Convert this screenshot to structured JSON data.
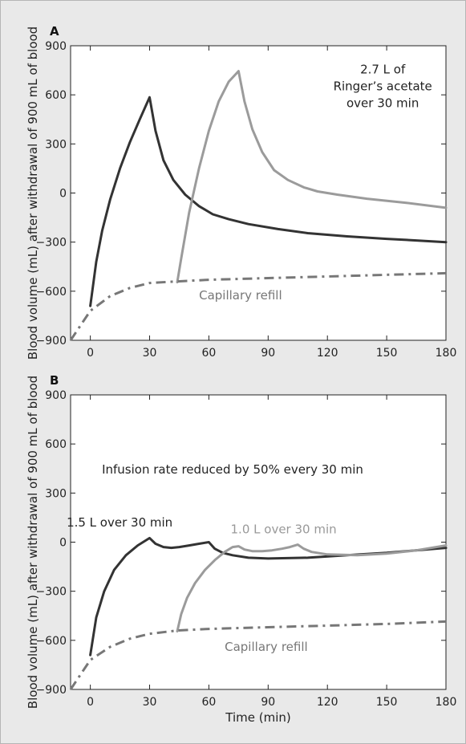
{
  "chart_data": [
    {
      "type": "line",
      "panel": "A",
      "ylabel": "Blood volume (mL) after withdrawal of 900 mL of blood",
      "xlim": [
        -10,
        180
      ],
      "ylim": [
        -900,
        900
      ],
      "xticks": [
        0,
        30,
        60,
        90,
        120,
        150,
        180
      ],
      "yticks": [
        900,
        600,
        300,
        0,
        -300,
        -600,
        -900
      ],
      "annotations": [
        {
          "text": "2.7 L of",
          "color": "#222222"
        },
        {
          "text": "Ringer’s acetate",
          "color": "#222222"
        },
        {
          "text": "over 30 min",
          "color": "#222222"
        },
        {
          "text": "Capillary refill",
          "color": "#777777"
        }
      ],
      "series": [
        {
          "color": "#333333",
          "style": "solid",
          "x": [
            0,
            3,
            6,
            10,
            15,
            20,
            25,
            30,
            33,
            37,
            42,
            48,
            55,
            62,
            70,
            80,
            95,
            110,
            130,
            150,
            165,
            180
          ],
          "y": [
            -690,
            -420,
            -230,
            -40,
            150,
            310,
            450,
            585,
            380,
            200,
            80,
            -10,
            -80,
            -130,
            -160,
            -190,
            -220,
            -245,
            -265,
            -280,
            -290,
            -300
          ]
        },
        {
          "color": "#9b9b9b",
          "style": "solid",
          "x": [
            44,
            46,
            50,
            55,
            60,
            65,
            70,
            75,
            78,
            82,
            87,
            93,
            100,
            108,
            115,
            125,
            140,
            160,
            180
          ],
          "y": [
            -545,
            -400,
            -120,
            150,
            380,
            560,
            680,
            745,
            560,
            390,
            250,
            140,
            80,
            35,
            10,
            -10,
            -35,
            -60,
            -90
          ]
        },
        {
          "color": "#777777",
          "style": "dashdot",
          "x": [
            -10,
            -5,
            0,
            10,
            20,
            30,
            44,
            60,
            90,
            120,
            150,
            180
          ],
          "y": [
            -900,
            -810,
            -720,
            -630,
            -580,
            -550,
            -540,
            -530,
            -520,
            -510,
            -500,
            -490
          ]
        }
      ]
    },
    {
      "type": "line",
      "panel": "B",
      "xlabel": "Time (min)",
      "ylabel": "Blood volume (mL) after withdrawal of 900 mL of blood",
      "xlim": [
        -10,
        180
      ],
      "ylim": [
        -900,
        900
      ],
      "xticks": [
        0,
        30,
        60,
        90,
        120,
        150,
        180
      ],
      "yticks": [
        900,
        600,
        300,
        0,
        -300,
        -600,
        -900
      ],
      "annotations": [
        {
          "text": "Infusion rate reduced by 50% every 30 min",
          "color": "#222222"
        },
        {
          "text": "1.5 L over 30 min",
          "color": "#222222"
        },
        {
          "text": "1.0 L over 30 min",
          "color": "#999999"
        },
        {
          "text": "Capillary refill",
          "color": "#777777"
        }
      ],
      "series": [
        {
          "color": "#333333",
          "style": "solid",
          "x": [
            0,
            3,
            7,
            12,
            18,
            24,
            30,
            33,
            37,
            41,
            45,
            50,
            55,
            60,
            63,
            67,
            72,
            80,
            90,
            110,
            130,
            150,
            180
          ],
          "y": [
            -690,
            -460,
            -300,
            -170,
            -80,
            -20,
            25,
            -10,
            -30,
            -35,
            -30,
            -20,
            -10,
            0,
            -40,
            -65,
            -80,
            -95,
            -100,
            -95,
            -80,
            -65,
            -35
          ]
        },
        {
          "color": "#9b9b9b",
          "style": "solid",
          "x": [
            44,
            46,
            49,
            53,
            58,
            63,
            68,
            72,
            75,
            78,
            82,
            87,
            92,
            97,
            101,
            105,
            108,
            112,
            120,
            135,
            150,
            165,
            180
          ],
          "y": [
            -545,
            -440,
            -340,
            -250,
            -170,
            -110,
            -60,
            -30,
            -25,
            -45,
            -55,
            -55,
            -50,
            -40,
            -30,
            -15,
            -40,
            -60,
            -75,
            -80,
            -70,
            -50,
            -20
          ]
        },
        {
          "color": "#777777",
          "style": "dashdot",
          "x": [
            -10,
            -5,
            0,
            10,
            20,
            30,
            44,
            60,
            90,
            120,
            150,
            180
          ],
          "y": [
            -900,
            -810,
            -720,
            -640,
            -590,
            -560,
            -540,
            -530,
            -520,
            -510,
            -500,
            -485
          ]
        }
      ]
    }
  ]
}
